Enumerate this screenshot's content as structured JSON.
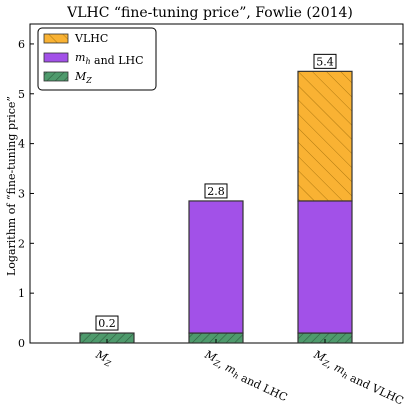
{
  "chart_data": {
    "type": "bar",
    "title": "VLHC “fine-tuning price”, Fowlie (2014)",
    "xlabel": "",
    "ylabel": "Logarithm of “fine-tuning price”",
    "ylim": [
      0,
      6.4
    ],
    "yticks": [
      0,
      1,
      2,
      3,
      4,
      5,
      6
    ],
    "categories": [
      "M_Z",
      "M_Z, m_h and LHC",
      "M_Z, m_h and VLHC"
    ],
    "stacking": "stacked",
    "series": [
      {
        "name": "M_Z",
        "color": "#4e9a6c",
        "hatch": "diagonal",
        "values": [
          0.2,
          0.2,
          0.2
        ]
      },
      {
        "name": "m_h and LHC",
        "color": "#a251e8",
        "hatch": "none",
        "values": [
          0,
          2.65,
          2.65
        ]
      },
      {
        "name": "VLHC",
        "color": "#f9b233",
        "hatch": "diagonal",
        "values": [
          0,
          0,
          2.6
        ]
      }
    ],
    "totals_labels": [
      "0.2",
      "2.8",
      "5.4"
    ],
    "totals_values": [
      0.2,
      2.85,
      5.45
    ],
    "legend": {
      "placement": "top-left",
      "order": [
        "VLHC",
        "m_h and LHC",
        "M_Z"
      ]
    },
    "grid": false
  }
}
